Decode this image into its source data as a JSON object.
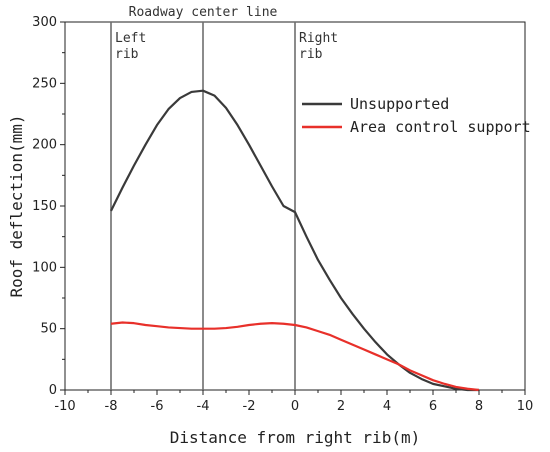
{
  "chart_data": {
    "type": "line",
    "xlabel": "Distance from right rib(m)",
    "ylabel": "Roof deflection(mm)",
    "xlim": [
      -10,
      10
    ],
    "ylim": [
      0,
      300
    ],
    "xticks": [
      -10,
      -8,
      -6,
      -4,
      -2,
      0,
      2,
      4,
      6,
      8,
      10
    ],
    "yticks": [
      0,
      50,
      100,
      150,
      200,
      250,
      300
    ],
    "grid": false,
    "legend_position": "right",
    "reference_lines": [
      {
        "x": -8,
        "label_lines": [
          "Left",
          "rib"
        ]
      },
      {
        "x": -4,
        "label_lines": [
          "Roadway center line"
        ]
      },
      {
        "x": 0,
        "label_lines": [
          "Right",
          "rib"
        ]
      }
    ],
    "series": [
      {
        "name": "Unsupported",
        "color": "#3a3a3a",
        "x": [
          -8,
          -7.5,
          -7,
          -6.5,
          -6,
          -5.5,
          -5,
          -4.5,
          -4,
          -3.5,
          -3,
          -2.5,
          -2,
          -1.5,
          -1,
          -0.5,
          0,
          0.5,
          1,
          1.5,
          2,
          2.5,
          3,
          3.5,
          4,
          4.5,
          5,
          5.5,
          6,
          6.5,
          7,
          7.5,
          8
        ],
        "y": [
          146,
          165,
          183,
          200,
          216,
          229,
          238,
          243,
          244,
          240,
          230,
          216,
          200,
          183,
          166,
          150,
          145,
          125,
          106,
          90,
          75,
          62,
          50,
          39,
          29,
          21,
          14,
          9,
          5,
          3,
          1,
          0,
          0
        ]
      },
      {
        "name": "Area control support",
        "color": "#e8302a",
        "x": [
          -8,
          -7.5,
          -7,
          -6.5,
          -6,
          -5.5,
          -5,
          -4.5,
          -4,
          -3.5,
          -3,
          -2.5,
          -2,
          -1.5,
          -1,
          -0.5,
          0,
          0.5,
          1,
          1.5,
          2,
          2.5,
          3,
          3.5,
          4,
          4.5,
          5,
          5.5,
          6,
          6.5,
          7,
          7.5,
          8
        ],
        "y": [
          54,
          55,
          54.5,
          53,
          52,
          51,
          50.5,
          50,
          50,
          50,
          50.5,
          51.5,
          53,
          54,
          54.5,
          54,
          53,
          51,
          48,
          45,
          41,
          37,
          33,
          29,
          25,
          21,
          16,
          12,
          8,
          5,
          2.5,
          1,
          0
        ]
      }
    ]
  }
}
